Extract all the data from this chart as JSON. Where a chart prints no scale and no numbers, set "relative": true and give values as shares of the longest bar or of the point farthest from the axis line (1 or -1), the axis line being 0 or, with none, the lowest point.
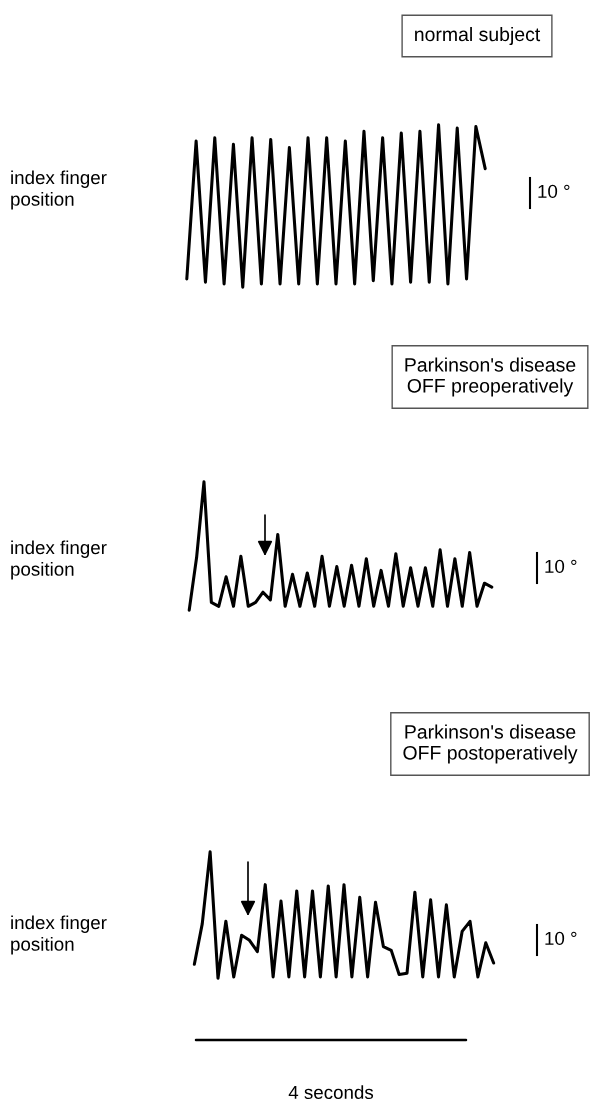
{
  "chart_data": [
    {
      "type": "line",
      "title": "normal subject",
      "ylabel": "index finger\nposition",
      "relative": true,
      "legend": false,
      "grid": false,
      "categories": [
        null,
        null,
        null,
        null,
        null,
        null,
        null,
        null,
        null,
        null,
        null,
        null,
        null,
        null,
        null,
        null,
        null,
        null,
        null,
        null,
        null,
        null,
        null,
        null,
        null,
        null,
        null,
        null,
        null,
        null,
        null,
        null,
        null
      ],
      "series": [
        {
          "color": "#000000",
          "values": [
            0.05,
            0.9,
            0.03,
            0.92,
            0.02,
            0.88,
            0.0,
            0.92,
            0.02,
            0.91,
            0.02,
            0.86,
            0.02,
            0.92,
            0.02,
            0.92,
            0.02,
            0.9,
            0.02,
            0.96,
            0.04,
            0.92,
            0.02,
            0.95,
            0.03,
            0.96,
            0.03,
            1.0,
            0.02,
            0.98,
            0.05,
            0.99,
            0.73
          ]
        }
      ],
      "annotations": [
        "10 °"
      ]
    },
    {
      "type": "line",
      "title": "Parkinson's disease\nOFF preoperatively",
      "ylabel": "index finger\nposition",
      "relative": true,
      "legend": false,
      "grid": false,
      "categories": [
        null,
        null,
        null,
        null,
        null,
        null,
        null,
        null,
        null,
        null,
        null,
        null,
        null,
        null,
        null,
        null,
        null,
        null,
        null,
        null,
        null,
        null,
        null,
        null,
        null,
        null,
        null,
        null,
        null,
        null,
        null,
        null,
        null,
        null,
        null,
        null,
        null,
        null,
        null,
        null,
        null,
        null
      ],
      "series": [
        {
          "color": "#000000",
          "values": [
            0.0,
            0.41,
            1.0,
            0.06,
            0.03,
            0.26,
            0.03,
            0.42,
            0.03,
            0.06,
            0.14,
            0.08,
            0.59,
            0.03,
            0.28,
            0.03,
            0.29,
            0.03,
            0.42,
            0.03,
            0.34,
            0.03,
            0.35,
            0.03,
            0.4,
            0.03,
            0.31,
            0.03,
            0.44,
            0.03,
            0.33,
            0.03,
            0.33,
            0.03,
            0.47,
            0.03,
            0.4,
            0.03,
            0.45,
            0.03,
            0.21,
            0.18
          ]
        }
      ],
      "annotations": [
        "10 °"
      ]
    },
    {
      "type": "line",
      "title": "Parkinson's disease\nOFF postoperatively",
      "ylabel": "index finger\nposition",
      "relative": true,
      "legend": false,
      "grid": false,
      "categories": [
        null,
        null,
        null,
        null,
        null,
        null,
        null,
        null,
        null,
        null,
        null,
        null,
        null,
        null,
        null,
        null,
        null,
        null,
        null,
        null,
        null,
        null,
        null,
        null,
        null,
        null,
        null,
        null,
        null,
        null,
        null,
        null,
        null,
        null,
        null,
        null,
        null,
        null,
        null
      ],
      "series": [
        {
          "color": "#000000",
          "values": [
            0.11,
            0.43,
            1.0,
            0.0,
            0.45,
            0.01,
            0.34,
            0.3,
            0.21,
            0.74,
            0.01,
            0.61,
            0.01,
            0.69,
            0.01,
            0.69,
            0.01,
            0.73,
            0.01,
            0.74,
            0.01,
            0.64,
            0.01,
            0.6,
            0.25,
            0.22,
            0.03,
            0.04,
            0.68,
            0.01,
            0.62,
            0.01,
            0.58,
            0.01,
            0.37,
            0.45,
            0.01,
            0.28,
            0.12
          ]
        }
      ],
      "annotations": [
        "10 °",
        "4 seconds"
      ]
    }
  ]
}
